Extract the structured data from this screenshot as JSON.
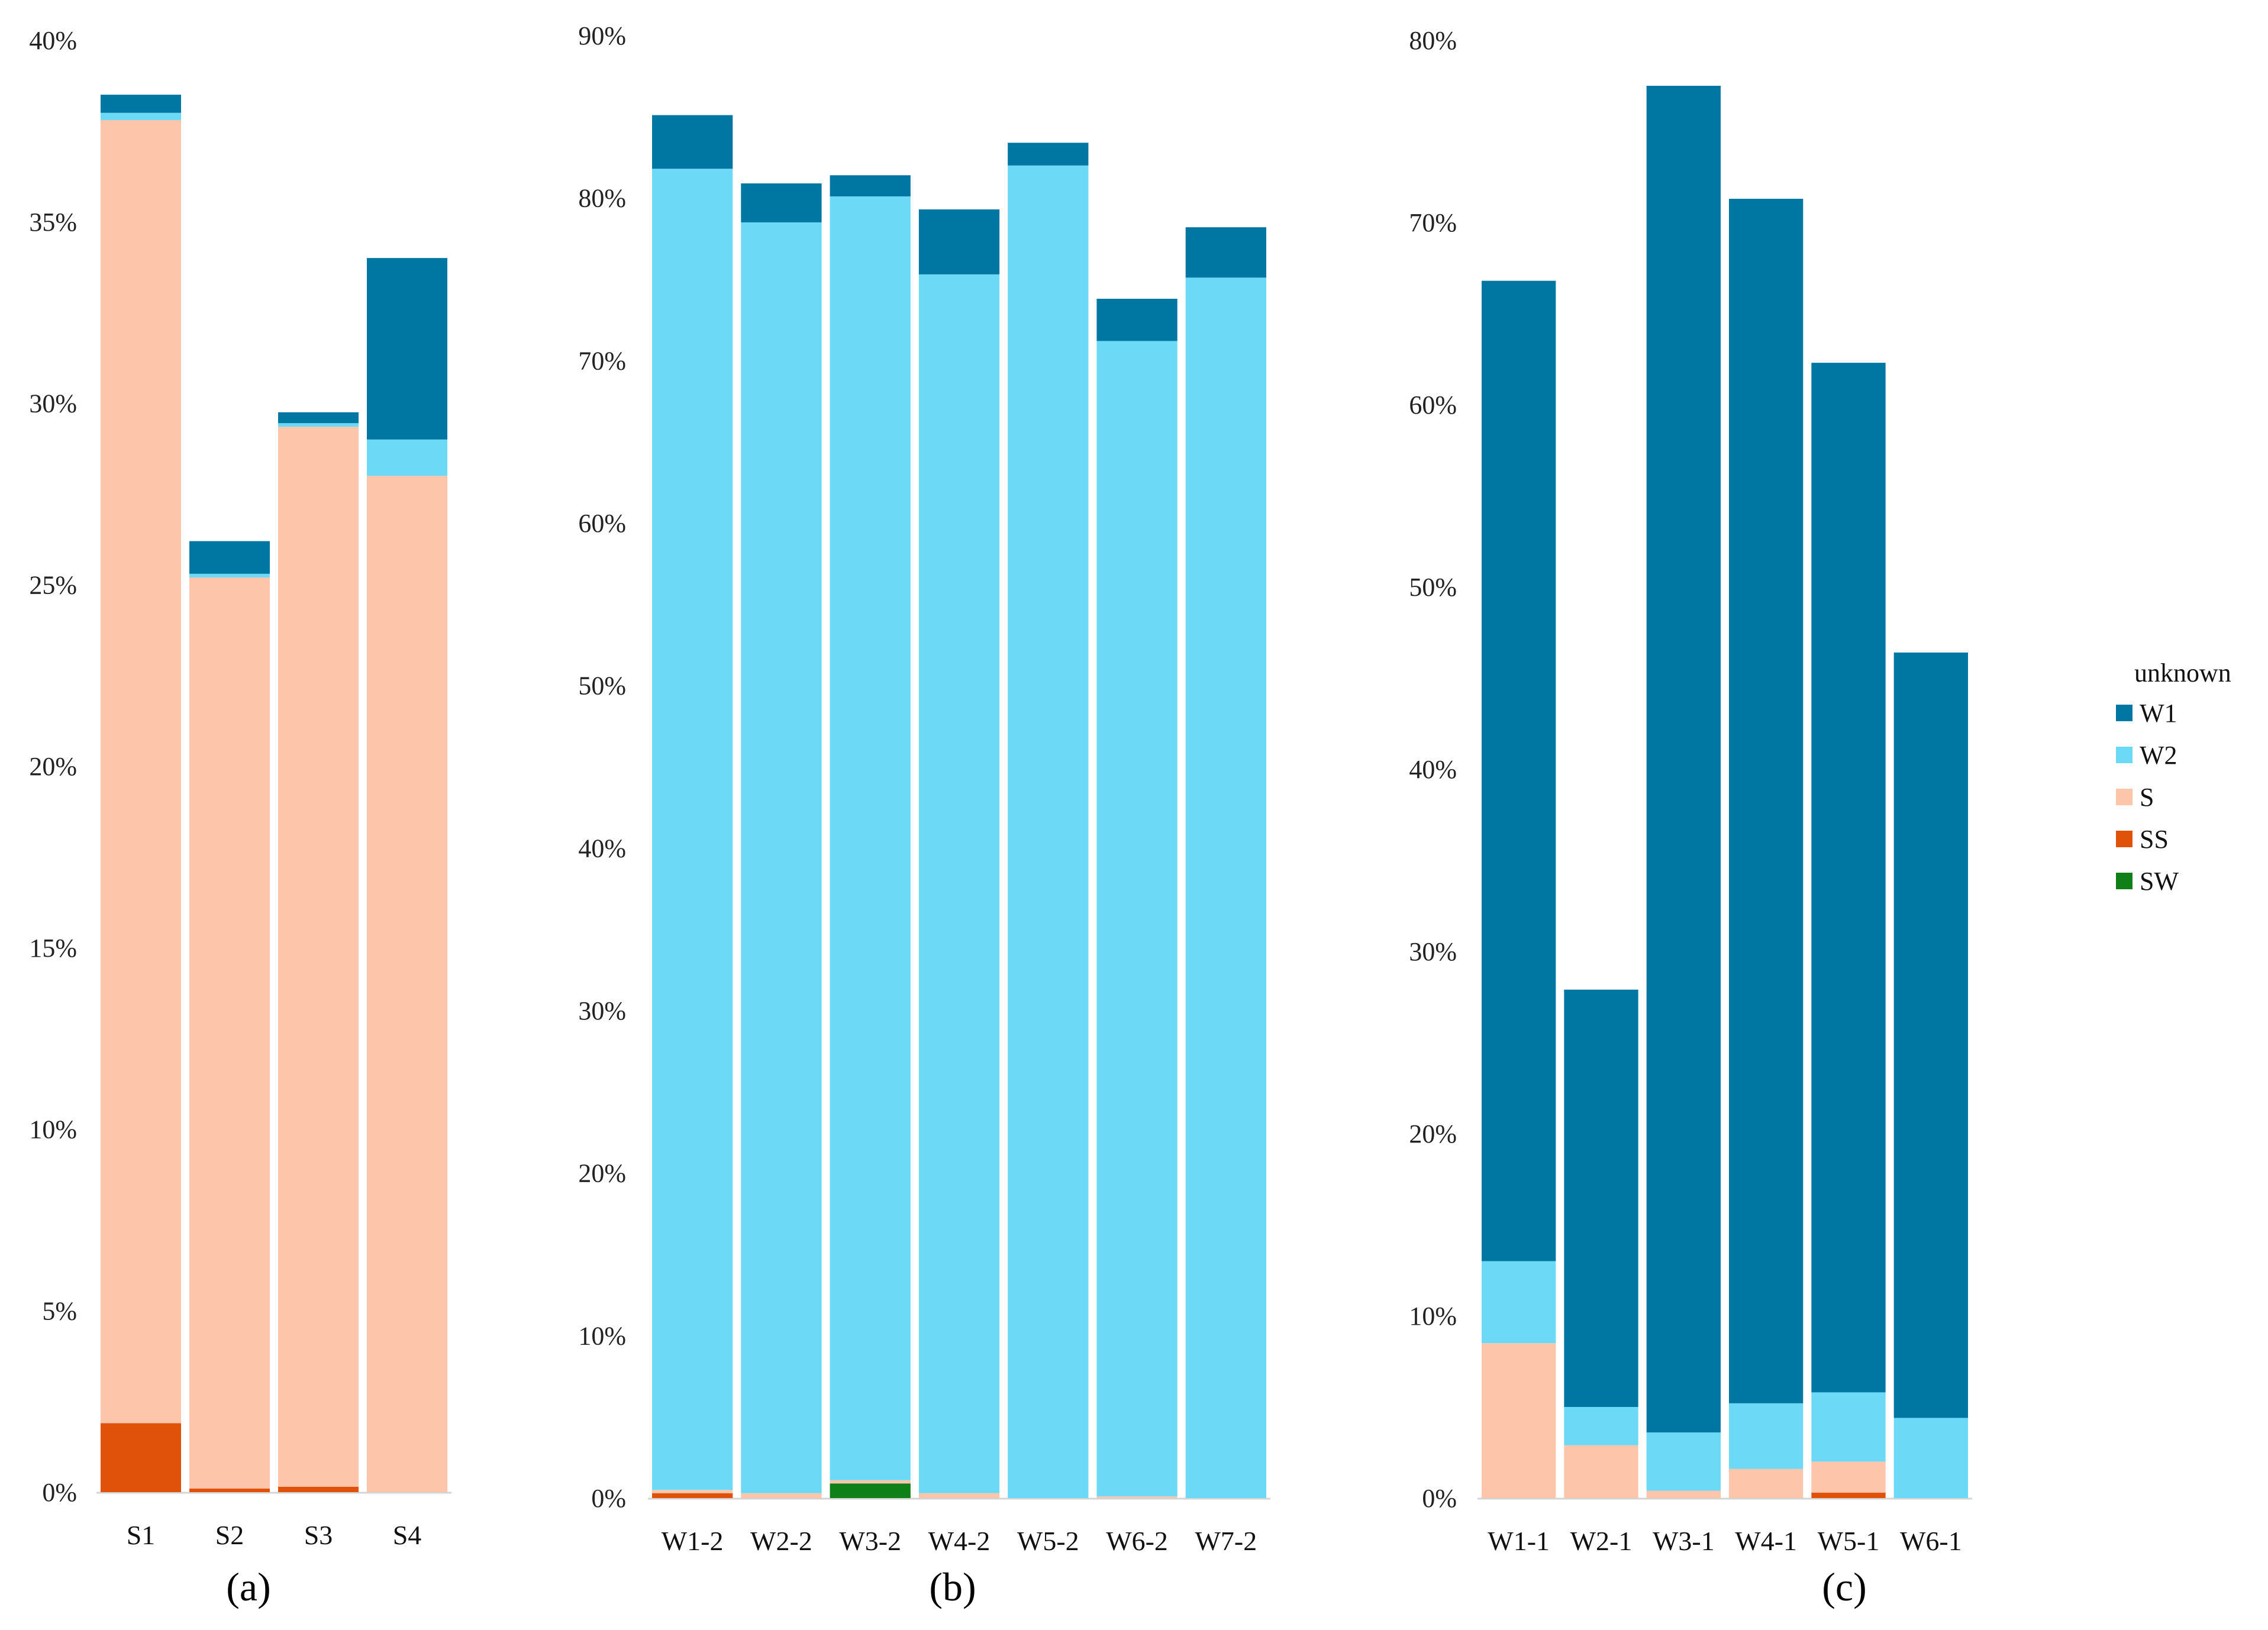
{
  "colors": {
    "W1": "#0077a2",
    "W2": "#6cdaf7",
    "S": "#fdc5aa",
    "SS": "#e0510a",
    "SW": "#0f7f17"
  },
  "legend": {
    "title": "unknown",
    "entries": [
      "W1",
      "W2",
      "S",
      "SS",
      "SW"
    ]
  },
  "chart_data": [
    {
      "type": "bar",
      "stacked": true,
      "panel_label": "(a)",
      "categories": [
        "S1",
        "S2",
        "S3",
        "S4"
      ],
      "ylim": [
        0,
        40
      ],
      "yticks": [
        0,
        5,
        10,
        15,
        20,
        25,
        30,
        35,
        40
      ],
      "ytick_labels": [
        "0%",
        "5%",
        "10%",
        "15%",
        "20%",
        "25%",
        "30%",
        "35%",
        "40%"
      ],
      "series": [
        {
          "name": "SW",
          "values": [
            0,
            0,
            0,
            0
          ]
        },
        {
          "name": "SS",
          "values": [
            1.9,
            0.1,
            0.15,
            0
          ]
        },
        {
          "name": "S",
          "values": [
            35.9,
            25.1,
            29.2,
            28.0
          ]
        },
        {
          "name": "W2",
          "values": [
            0.2,
            0.1,
            0.1,
            1.0
          ]
        },
        {
          "name": "W1",
          "values": [
            0.5,
            0.9,
            0.3,
            5.0
          ]
        }
      ]
    },
    {
      "type": "bar",
      "stacked": true,
      "panel_label": "(b)",
      "categories": [
        "W1-2",
        "W2-2",
        "W3-2",
        "W4-2",
        "W5-2",
        "W6-2",
        "W7-2"
      ],
      "ylim": [
        0,
        90
      ],
      "yticks": [
        0,
        10,
        20,
        30,
        40,
        50,
        60,
        70,
        80,
        90
      ],
      "ytick_labels": [
        "0%",
        "10%",
        "20%",
        "30%",
        "40%",
        "50%",
        "60%",
        "70%",
        "80%",
        "90%"
      ],
      "series": [
        {
          "name": "SW",
          "values": [
            0,
            0,
            0.9,
            0,
            0,
            0,
            0
          ]
        },
        {
          "name": "SS",
          "values": [
            0.3,
            0,
            0,
            0,
            0,
            0,
            0
          ]
        },
        {
          "name": "S",
          "values": [
            0.2,
            0.3,
            0.2,
            0.3,
            0,
            0.1,
            0
          ]
        },
        {
          "name": "W2",
          "values": [
            81.3,
            78.2,
            79.0,
            75.0,
            82.0,
            71.1,
            75.1
          ]
        },
        {
          "name": "W1",
          "values": [
            3.3,
            2.4,
            1.3,
            4.0,
            1.4,
            2.6,
            3.1
          ]
        }
      ]
    },
    {
      "type": "bar",
      "stacked": true,
      "panel_label": "(c)",
      "categories": [
        "W1-1",
        "W2-1",
        "W3-1",
        "W4-1",
        "W5-1",
        "W6-1"
      ],
      "ylim": [
        0,
        80
      ],
      "yticks": [
        0,
        10,
        20,
        30,
        40,
        50,
        60,
        70,
        80
      ],
      "ytick_labels": [
        "0%",
        "10%",
        "20%",
        "30%",
        "40%",
        "50%",
        "60%",
        "70%",
        "80%"
      ],
      "series": [
        {
          "name": "SW",
          "values": [
            0,
            0,
            0,
            0,
            0,
            0
          ]
        },
        {
          "name": "SS",
          "values": [
            0,
            0,
            0,
            0,
            0.3,
            0
          ]
        },
        {
          "name": "S",
          "values": [
            8.5,
            2.9,
            0.4,
            1.6,
            1.7,
            0
          ]
        },
        {
          "name": "W2",
          "values": [
            4.5,
            2.1,
            3.2,
            3.6,
            3.8,
            4.4
          ]
        },
        {
          "name": "W1",
          "values": [
            53.8,
            22.9,
            73.9,
            66.1,
            56.5,
            42.0
          ]
        }
      ]
    }
  ]
}
